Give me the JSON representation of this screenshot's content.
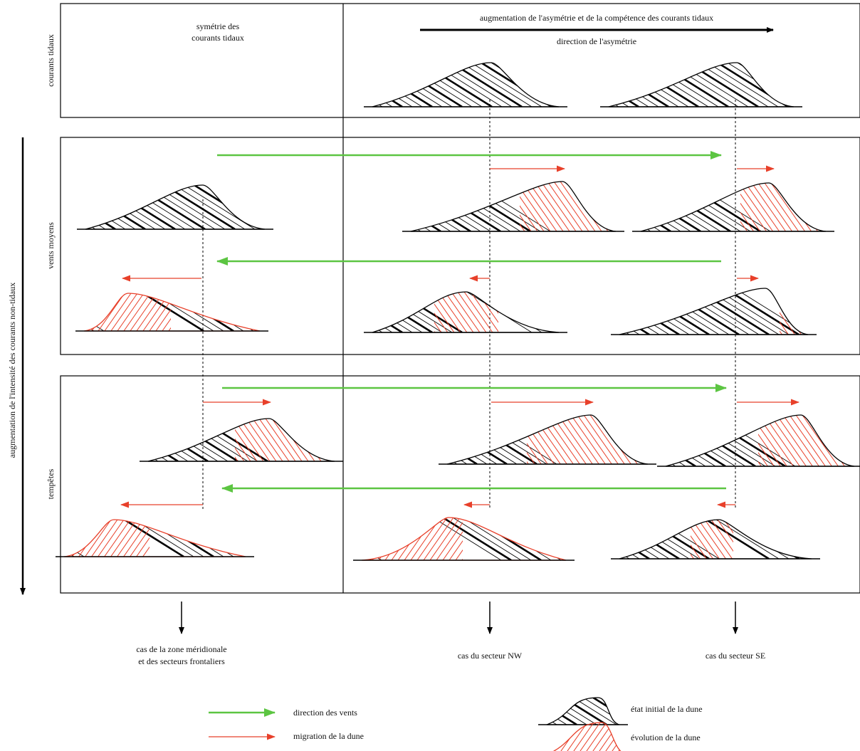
{
  "header": {
    "top_left": [
      "symétrie des",
      "courants tidaux"
    ],
    "top_right": "augmentation de l'asymétrie et de la compétence des courants tidaux",
    "asymmetry": "direction de l'asymétrie"
  },
  "rows": [
    "courants tidaux",
    "vents moyens",
    "tempêtes"
  ],
  "side_axis": "augmentation de l'intensité des courants non-tidaux",
  "cases": [
    [
      "cas de la zone méridionale",
      "et des secteurs frontaliers"
    ],
    [
      "cas du secteur NW"
    ],
    [
      "cas du secteur SE"
    ]
  ],
  "legend": [
    "direction des vents",
    "migration de la dune",
    "état initial de la dune",
    "évolution de la dune"
  ]
}
